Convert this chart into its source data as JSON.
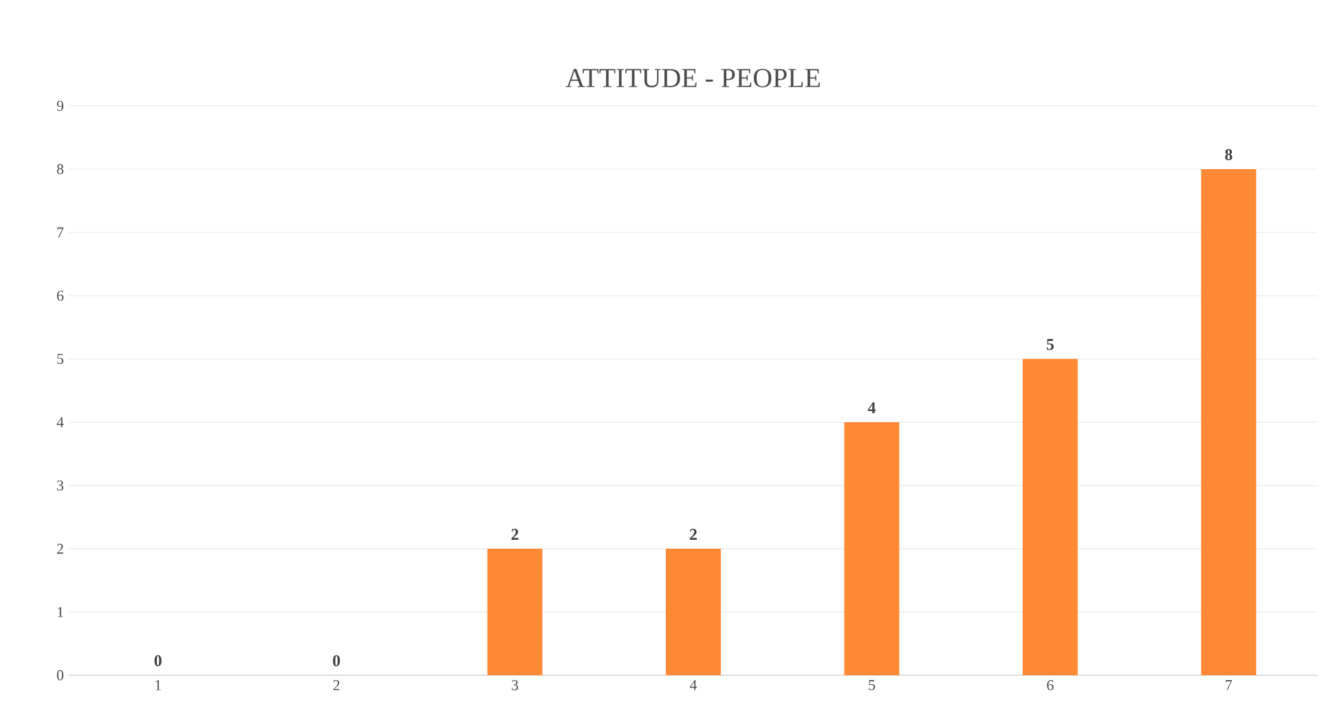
{
  "chart_data": {
    "type": "bar",
    "title": "ATTITUDE - PEOPLE",
    "categories": [
      "1",
      "2",
      "3",
      "4",
      "5",
      "6",
      "7"
    ],
    "values": [
      0,
      0,
      2,
      2,
      4,
      5,
      8
    ],
    "color": "#ff8a35",
    "ylim": [
      0,
      9
    ],
    "yticks": [
      0,
      1,
      2,
      3,
      4,
      5,
      6,
      7,
      8,
      9
    ],
    "grid": "y",
    "data_labels": true
  }
}
